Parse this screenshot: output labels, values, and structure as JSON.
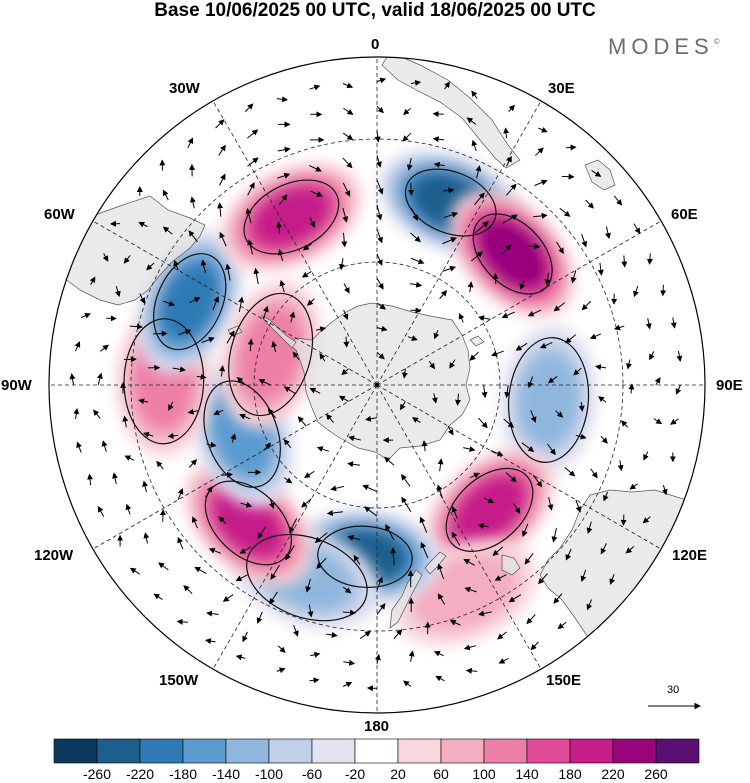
{
  "title": "Base 10/06/2025 00 UTC, valid 18/06/2025 00 UTC",
  "logo": "MODES",
  "logo_mark": "©",
  "longitude_labels": {
    "top": "0",
    "top_right": "30E",
    "right_upper": "60E",
    "right": "90E",
    "right_lower": "120E",
    "bottom_right": "150E",
    "bottom": "180",
    "bottom_left": "150W",
    "left_lower": "120W",
    "left": "90W",
    "left_upper": "60W",
    "top_left": "30W"
  },
  "reference_vector": {
    "label": "30"
  },
  "colorbar": {
    "colors": [
      "#0d3a5c",
      "#1d5f8c",
      "#2f7ab5",
      "#5a9bd0",
      "#8fb7de",
      "#c2cfe8",
      "#e3e3f1",
      "#ffffff",
      "#f9d7dc",
      "#f3aec0",
      "#ee7fa8",
      "#e24b98",
      "#c61d8a",
      "#99067c",
      "#5c0f73"
    ],
    "labels": [
      "-260",
      "-220",
      "-180",
      "-140",
      "-100",
      "-60",
      "-20",
      "20",
      "60",
      "100",
      "140",
      "180",
      "220",
      "260"
    ]
  },
  "anomalies": [
    {
      "name": "neg-30E",
      "lon": 22,
      "lat": -42,
      "value": -240
    },
    {
      "name": "pos-45E",
      "lon": 46,
      "lat": -44,
      "value": 230
    },
    {
      "name": "neg-95E",
      "lon": 95,
      "lat": -48,
      "value": -110
    },
    {
      "name": "pos-140E",
      "lon": 138,
      "lat": -49,
      "value": 200
    },
    {
      "name": "pos-155E",
      "lon": 157,
      "lat": -35,
      "value": 70
    },
    {
      "name": "neg-180",
      "lon": -176,
      "lat": -48,
      "value": -230
    },
    {
      "name": "neg-165W",
      "lon": -160,
      "lat": -40,
      "value": -120
    },
    {
      "name": "pos-135W",
      "lon": -137,
      "lat": -44,
      "value": 200
    },
    {
      "name": "neg-110W",
      "lon": -110,
      "lat": -55,
      "value": -150
    },
    {
      "name": "pos-90W",
      "lon": -89,
      "lat": -38,
      "value": 120
    },
    {
      "name": "neg-65W",
      "lon": -66,
      "lat": -40,
      "value": -210
    },
    {
      "name": "pos-25W",
      "lon": -27,
      "lat": -44,
      "value": 200
    },
    {
      "name": "pos-70W",
      "lon": -74,
      "lat": -63,
      "value": 120
    }
  ]
}
